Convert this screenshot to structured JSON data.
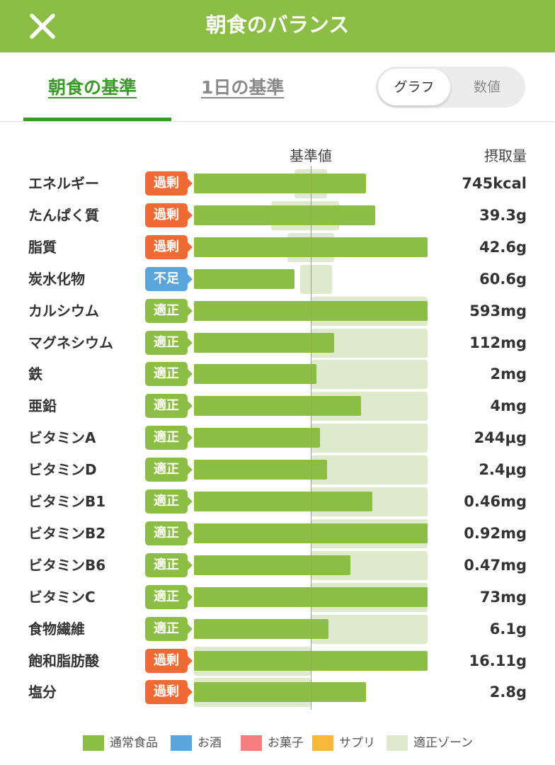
{
  "header": {
    "title": "朝食のバランス",
    "close_icon": "close-icon"
  },
  "tabs": [
    {
      "label": "朝食の基準",
      "active": true
    },
    {
      "label": "1日の基準",
      "active": false
    }
  ],
  "view_toggle": {
    "options": [
      "グラフ",
      "数値"
    ],
    "selected": "グラフ"
  },
  "columns": {
    "reference": "基準値",
    "intake": "摂取量"
  },
  "colors": {
    "normal_food": "#8cbd45",
    "alcohol": "#5aa6dc",
    "snack": "#f57e7e",
    "supplement": "#f8b93a",
    "proper_zone": "#deeacb",
    "badge_over": "#ef6a35",
    "badge_under": "#5aa6dc",
    "badge_ok": "#8cbd45"
  },
  "nutrients": [
    {
      "name": "エネルギー",
      "status": "過剰",
      "status_type": "over",
      "value": "745kcal",
      "bar_ratio": 1.47,
      "zone": [
        0.86,
        1.14
      ]
    },
    {
      "name": "たんぱく質",
      "status": "過剰",
      "status_type": "over",
      "value": "39.3g",
      "bar_ratio": 1.55,
      "zone": [
        0.66,
        1.24
      ]
    },
    {
      "name": "脂質",
      "status": "過剰",
      "status_type": "over",
      "value": "42.6g",
      "bar_ratio": 2.0,
      "zone": [
        0.8,
        1.2
      ]
    },
    {
      "name": "炭水化物",
      "status": "不足",
      "status_type": "under",
      "value": "60.6g",
      "bar_ratio": 0.86,
      "zone": [
        0.91,
        1.18
      ]
    },
    {
      "name": "カルシウム",
      "status": "適正",
      "status_type": "ok",
      "value": "593mg",
      "bar_ratio": 2.0,
      "zone": [
        1.0,
        2.0
      ]
    },
    {
      "name": "マグネシウム",
      "status": "適正",
      "status_type": "ok",
      "value": "112mg",
      "bar_ratio": 1.2,
      "zone": [
        1.0,
        2.0
      ]
    },
    {
      "name": "鉄",
      "status": "適正",
      "status_type": "ok",
      "value": "2mg",
      "bar_ratio": 1.05,
      "zone": [
        1.0,
        2.0
      ]
    },
    {
      "name": "亜鉛",
      "status": "適正",
      "status_type": "ok",
      "value": "4mg",
      "bar_ratio": 1.43,
      "zone": [
        1.0,
        2.0
      ]
    },
    {
      "name": "ビタミンA",
      "status": "適正",
      "status_type": "ok",
      "value": "244μg",
      "bar_ratio": 1.08,
      "zone": [
        1.0,
        2.0
      ]
    },
    {
      "name": "ビタミンD",
      "status": "適正",
      "status_type": "ok",
      "value": "2.4μg",
      "bar_ratio": 1.14,
      "zone": [
        1.0,
        2.0
      ]
    },
    {
      "name": "ビタミンB1",
      "status": "適正",
      "status_type": "ok",
      "value": "0.46mg",
      "bar_ratio": 1.53,
      "zone": [
        1.0,
        2.0
      ]
    },
    {
      "name": "ビタミンB2",
      "status": "適正",
      "status_type": "ok",
      "value": "0.92mg",
      "bar_ratio": 2.0,
      "zone": [
        1.0,
        2.0
      ]
    },
    {
      "name": "ビタミンB6",
      "status": "適正",
      "status_type": "ok",
      "value": "0.47mg",
      "bar_ratio": 1.34,
      "zone": [
        1.0,
        2.0
      ]
    },
    {
      "name": "ビタミンC",
      "status": "適正",
      "status_type": "ok",
      "value": "73mg",
      "bar_ratio": 2.0,
      "zone": [
        1.0,
        2.0
      ]
    },
    {
      "name": "食物繊維",
      "status": "適正",
      "status_type": "ok",
      "value": "6.1g",
      "bar_ratio": 1.15,
      "zone": [
        1.0,
        2.0
      ]
    },
    {
      "name": "飽和脂肪酸",
      "status": "過剰",
      "status_type": "over",
      "value": "16.11g",
      "bar_ratio": 2.0,
      "zone": [
        0.0,
        1.0
      ]
    },
    {
      "name": "塩分",
      "status": "過剰",
      "status_type": "over",
      "value": "2.8g",
      "bar_ratio": 1.47,
      "zone": [
        0.0,
        1.0
      ]
    }
  ],
  "legend": [
    {
      "label": "通常食品",
      "color": "#8cbd45"
    },
    {
      "label": "お酒",
      "color": "#5aa6dc"
    },
    {
      "label": "お菓子",
      "color": "#f57e7e"
    },
    {
      "label": "サプリ",
      "color": "#f8b93a"
    },
    {
      "label": "適正ゾーン",
      "color": "#deeacb"
    }
  ]
}
